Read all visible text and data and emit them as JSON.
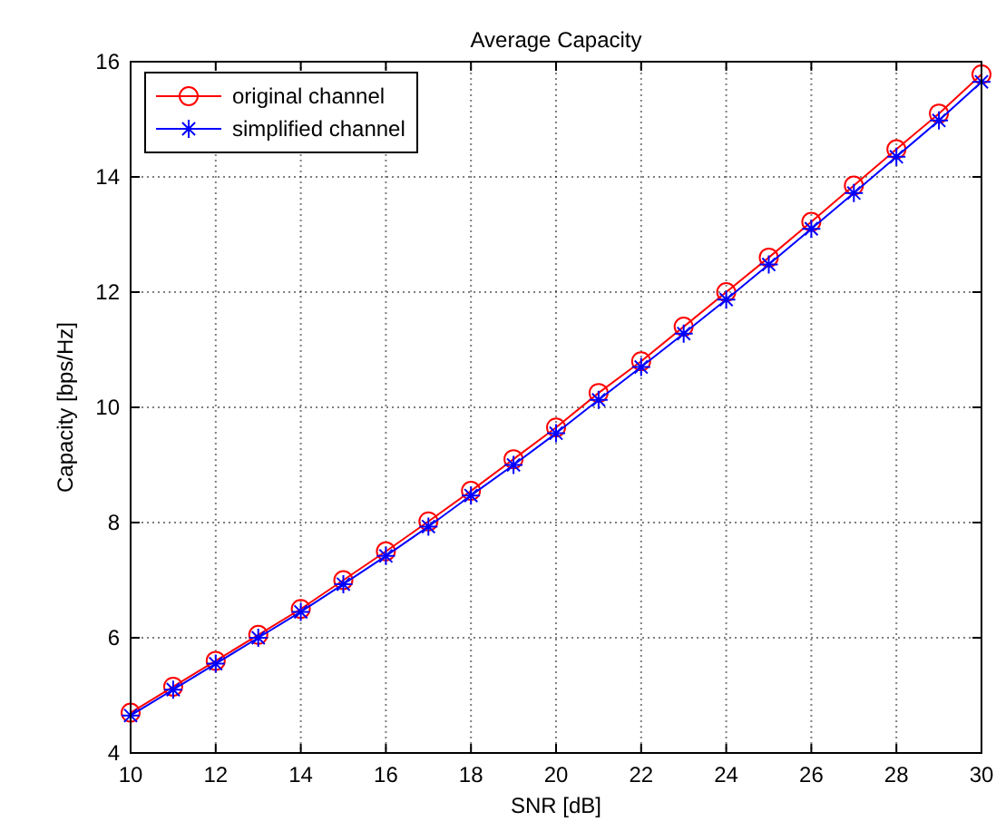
{
  "chart_data": {
    "type": "line",
    "title": "Average Capacity",
    "xlabel": "SNR [dB]",
    "ylabel": "Capacity [bps/Hz]",
    "x": [
      10,
      11,
      12,
      13,
      14,
      15,
      16,
      17,
      18,
      19,
      20,
      21,
      22,
      23,
      24,
      25,
      26,
      27,
      28,
      29,
      30
    ],
    "series": [
      {
        "name": "original channel",
        "color": "#ff0000",
        "marker": "circle",
        "values": [
          4.7,
          5.15,
          5.6,
          6.05,
          6.5,
          7.0,
          7.5,
          8.02,
          8.55,
          9.1,
          9.65,
          10.25,
          10.8,
          11.4,
          12.0,
          12.6,
          13.22,
          13.85,
          14.48,
          15.1,
          15.78
        ]
      },
      {
        "name": "simplified channel",
        "color": "#0000ff",
        "marker": "cross",
        "values": [
          4.65,
          5.1,
          5.55,
          6.0,
          6.45,
          6.93,
          7.42,
          7.93,
          8.47,
          9.0,
          9.55,
          10.13,
          10.7,
          11.28,
          11.87,
          12.48,
          13.1,
          13.72,
          14.35,
          14.98,
          15.65
        ]
      }
    ],
    "xlim": [
      10,
      30
    ],
    "xticks": [
      10,
      12,
      14,
      16,
      18,
      20,
      22,
      24,
      26,
      28,
      30
    ],
    "ylim": [
      4,
      16
    ],
    "yticks": [
      4,
      6,
      8,
      10,
      12,
      14,
      16
    ],
    "grid": true,
    "legend": "top left",
    "line_style": "solid"
  }
}
